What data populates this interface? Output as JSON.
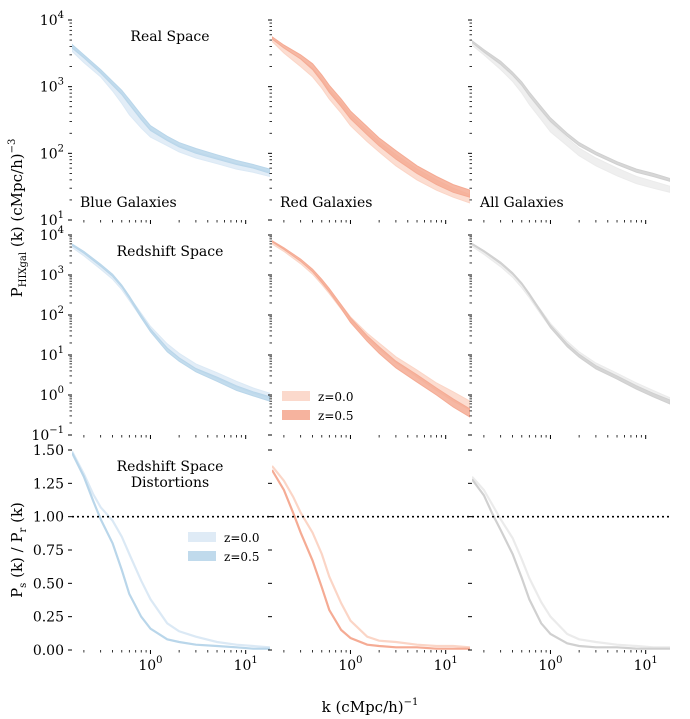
{
  "figure": {
    "xlabel_main": "k (cMpc/h)",
    "xlabel_sup": "−1",
    "row_ylabels": [
      {
        "main": "P",
        "sub": "HIXgal",
        "rest": " (k) (cMpc/h)",
        "sup": "−3"
      },
      {
        "main": "P",
        "sub": "s",
        "rest": " (k) / P",
        "sub2": "r",
        "rest2": " (k)"
      }
    ]
  },
  "chart_data": [
    {
      "type": "area",
      "row": 0,
      "title": "Real Space",
      "column_labels": [
        "Blue Galaxies",
        "Red Galaxies",
        "All Galaxies"
      ],
      "xscale": "log",
      "yscale": "log",
      "xlim": [
        0.15,
        18
      ],
      "ylim": [
        10,
        10000
      ],
      "y_ticks": [
        {
          "v": 10,
          "b": "10",
          "e": "1"
        },
        {
          "v": 100,
          "b": "10",
          "e": "2"
        },
        {
          "v": 1000,
          "b": "10",
          "e": "3"
        },
        {
          "v": 10000,
          "b": "10",
          "e": "4"
        }
      ],
      "x_ticks": [],
      "k": [
        0.15,
        0.2,
        0.3,
        0.4,
        0.5,
        0.6,
        0.8,
        1.0,
        1.5,
        2,
        3,
        5,
        8,
        12,
        18
      ],
      "panels": [
        {
          "galaxy": "Blue",
          "series": [
            {
              "z": "z=0.0",
              "upper": [
                4000,
                2800,
                1700,
                1100,
                800,
                560,
                330,
                230,
                160,
                130,
                105,
                85,
                70,
                62,
                52
              ],
              "lower": [
                3400,
                2300,
                1400,
                860,
                560,
                380,
                240,
                175,
                130,
                105,
                85,
                70,
                58,
                52,
                45
              ]
            },
            {
              "z": "z=0.5",
              "upper": [
                4300,
                3000,
                1800,
                1200,
                880,
                640,
                380,
                260,
                180,
                145,
                118,
                95,
                78,
                68,
                58
              ],
              "lower": [
                3800,
                2700,
                1600,
                1050,
                760,
                540,
                320,
                220,
                155,
                125,
                100,
                82,
                68,
                60,
                50
              ]
            }
          ]
        },
        {
          "galaxy": "Red",
          "series": [
            {
              "z": "z=0.0",
              "upper": [
                5200,
                3800,
                2600,
                1900,
                1300,
                900,
                580,
                380,
                220,
                150,
                95,
                58,
                40,
                30,
                24
              ],
              "lower": [
                4800,
                3200,
                2000,
                1400,
                950,
                650,
                400,
                260,
                150,
                105,
                65,
                40,
                28,
                22,
                18
              ]
            },
            {
              "z": "z=0.5",
              "upper": [
                5600,
                4200,
                3000,
                2200,
                1500,
                1050,
                650,
                430,
                250,
                170,
                110,
                65,
                45,
                34,
                28
              ],
              "lower": [
                5200,
                3800,
                2600,
                1800,
                1200,
                820,
                500,
                330,
                190,
                130,
                82,
                50,
                34,
                26,
                22
              ]
            }
          ]
        },
        {
          "galaxy": "All",
          "series": [
            {
              "z": "z=0.0",
              "upper": [
                4600,
                3400,
                2200,
                1500,
                1050,
                720,
                430,
                290,
                170,
                120,
                85,
                60,
                45,
                38,
                32
              ],
              "lower": [
                4200,
                3000,
                1800,
                1200,
                800,
                540,
                320,
                210,
                130,
                92,
                65,
                46,
                35,
                30,
                26
              ]
            },
            {
              "z": "z=0.5",
              "upper": [
                4900,
                3600,
                2400,
                1650,
                1180,
                830,
                500,
                340,
                200,
                145,
                105,
                75,
                58,
                50,
                42
              ],
              "lower": [
                4600,
                3300,
                2150,
                1480,
                1050,
                730,
                440,
                300,
                180,
                130,
                95,
                68,
                52,
                45,
                38
              ]
            }
          ]
        }
      ]
    },
    {
      "type": "area",
      "row": 1,
      "title": "Redshift Space",
      "xscale": "log",
      "yscale": "log",
      "xlim": [
        0.15,
        18
      ],
      "ylim": [
        0.1,
        10000
      ],
      "y_ticks": [
        {
          "v": 0.1,
          "b": "10",
          "e": "−1"
        },
        {
          "v": 1,
          "b": "10",
          "e": "0"
        },
        {
          "v": 10,
          "b": "10",
          "e": "1"
        },
        {
          "v": 100,
          "b": "10",
          "e": "2"
        },
        {
          "v": 1000,
          "b": "10",
          "e": "3"
        },
        {
          "v": 10000,
          "b": "10",
          "e": "4"
        }
      ],
      "x_ticks": [],
      "legend": {
        "panel": 1,
        "placement": "lower-left",
        "entries": [
          "z=0.0",
          "z=0.5"
        ]
      },
      "k": [
        0.15,
        0.2,
        0.3,
        0.4,
        0.5,
        0.6,
        0.8,
        1.0,
        1.5,
        2,
        3,
        5,
        8,
        12,
        18
      ],
      "panels": [
        {
          "galaxy": "Blue",
          "series": [
            {
              "z": "z=0.0",
              "upper": [
                5600,
                3600,
                1700,
                950,
                520,
                290,
                110,
                52,
                19,
                11,
                6,
                3.6,
                2.2,
                1.5,
                1.1
              ],
              "lower": [
                4900,
                3000,
                1400,
                780,
                430,
                230,
                85,
                40,
                15,
                8.5,
                4.5,
                2.6,
                1.6,
                1.1,
                0.85
              ]
            },
            {
              "z": "z=0.5",
              "upper": [
                6000,
                3900,
                1850,
                1050,
                560,
                300,
                100,
                45,
                15,
                8.5,
                4.6,
                2.8,
                1.7,
                1.2,
                0.9
              ],
              "lower": [
                5500,
                3500,
                1650,
                920,
                500,
                260,
                85,
                38,
                12,
                7,
                3.8,
                2.2,
                1.3,
                0.95,
                0.7
              ]
            }
          ]
        },
        {
          "galaxy": "Red",
          "series": [
            {
              "z": "z=0.0",
              "upper": [
                6500,
                4300,
                2200,
                1250,
                700,
                420,
                180,
                90,
                35,
                20,
                9,
                4.2,
                2,
                1.2,
                0.7
              ],
              "lower": [
                6000,
                3900,
                1900,
                1050,
                580,
                340,
                140,
                68,
                26,
                14,
                6.5,
                2.8,
                1.3,
                0.7,
                0.42
              ]
            },
            {
              "z": "z=0.5",
              "upper": [
                7200,
                4800,
                2500,
                1400,
                780,
                460,
                180,
                85,
                30,
                16,
                7,
                3.2,
                1.5,
                0.8,
                0.45
              ],
              "lower": [
                6800,
                4400,
                2200,
                1200,
                650,
                380,
                145,
                65,
                22,
                11,
                4.8,
                2.1,
                1,
                0.5,
                0.28
              ]
            }
          ]
        },
        {
          "galaxy": "All",
          "series": [
            {
              "z": "z=0.0",
              "upper": [
                5800,
                3800,
                1900,
                1050,
                590,
                330,
                130,
                62,
                22,
                12,
                6.3,
                3.5,
                2,
                1.3,
                0.85
              ],
              "lower": [
                5200,
                3300,
                1600,
                880,
                480,
                270,
                100,
                48,
                17,
                9,
                4.7,
                2.5,
                1.4,
                0.9,
                0.6
              ]
            },
            {
              "z": "z=0.5",
              "upper": [
                6200,
                4100,
                2100,
                1150,
                640,
                350,
                125,
                56,
                19,
                10.5,
                5.4,
                3,
                1.7,
                1.1,
                0.75
              ],
              "lower": [
                5800,
                3800,
                1900,
                1050,
                580,
                310,
                110,
                48,
                16,
                8.8,
                4.5,
                2.5,
                1.4,
                0.9,
                0.6
              ]
            }
          ]
        }
      ]
    },
    {
      "type": "line",
      "row": 2,
      "title": "Redshift Space",
      "title2": "Distortions",
      "xscale": "log",
      "yscale": "linear",
      "xlim": [
        0.15,
        18
      ],
      "ylim": [
        0.0,
        1.5
      ],
      "reference_line": 1.0,
      "y_ticks": [
        {
          "v": 0,
          "t": "0.00"
        },
        {
          "v": 0.25,
          "t": "0.25"
        },
        {
          "v": 0.5,
          "t": "0.50"
        },
        {
          "v": 0.75,
          "t": "0.75"
        },
        {
          "v": 1,
          "t": "1.00"
        },
        {
          "v": 1.25,
          "t": "1.25"
        },
        {
          "v": 1.5,
          "t": "1.50"
        }
      ],
      "x_ticks": [
        {
          "v": 1,
          "b": "10",
          "e": "0"
        },
        {
          "v": 10,
          "b": "10",
          "e": "1"
        }
      ],
      "legend": {
        "panel": 0,
        "placement": "center-right",
        "entries": [
          "z=0.0",
          "z=0.5"
        ]
      },
      "k": [
        0.15,
        0.2,
        0.25,
        0.3,
        0.4,
        0.5,
        0.6,
        0.8,
        1.0,
        1.5,
        2,
        3,
        5,
        8,
        12,
        18
      ],
      "panels": [
        {
          "galaxy": "Blue",
          "series": [
            {
              "z": "z=0.0",
              "values": [
                1.49,
                1.32,
                1.17,
                1.07,
                0.97,
                0.85,
                0.72,
                0.52,
                0.38,
                0.2,
                0.14,
                0.1,
                0.06,
                0.04,
                0.03,
                0.02
              ]
            },
            {
              "z": "z=0.5",
              "values": [
                1.48,
                1.3,
                1.12,
                0.98,
                0.8,
                0.6,
                0.42,
                0.25,
                0.16,
                0.08,
                0.06,
                0.04,
                0.03,
                0.02,
                0.01,
                0.01
              ]
            }
          ]
        },
        {
          "galaxy": "Red",
          "series": [
            {
              "z": "z=0.0",
              "values": [
                1.38,
                1.27,
                1.15,
                1.03,
                0.88,
                0.72,
                0.55,
                0.35,
                0.22,
                0.1,
                0.07,
                0.06,
                0.04,
                0.03,
                0.03,
                0.02
              ]
            },
            {
              "z": "z=0.5",
              "values": [
                1.35,
                1.2,
                1.03,
                0.88,
                0.67,
                0.47,
                0.3,
                0.15,
                0.09,
                0.04,
                0.03,
                0.02,
                0.02,
                0.01,
                0.01,
                0.01
              ]
            }
          ]
        },
        {
          "galaxy": "All",
          "series": [
            {
              "z": "z=0.0",
              "values": [
                1.3,
                1.2,
                1.08,
                0.98,
                0.84,
                0.68,
                0.54,
                0.36,
                0.25,
                0.12,
                0.08,
                0.06,
                0.04,
                0.03,
                0.02,
                0.02
              ]
            },
            {
              "z": "z=0.5",
              "values": [
                1.28,
                1.16,
                1.01,
                0.9,
                0.72,
                0.54,
                0.38,
                0.2,
                0.12,
                0.05,
                0.03,
                0.02,
                0.02,
                0.01,
                0.01,
                0.01
              ]
            }
          ]
        }
      ]
    }
  ],
  "colors": {
    "blue_z0": "#dbe9f5",
    "blue_z05": "#b9d6ea",
    "red_z0": "#fbd5c6",
    "red_z05": "#f5ab94",
    "gray_z0": "#ebebeb",
    "gray_z05": "#d0d0d0",
    "reference_line": "#000000"
  }
}
